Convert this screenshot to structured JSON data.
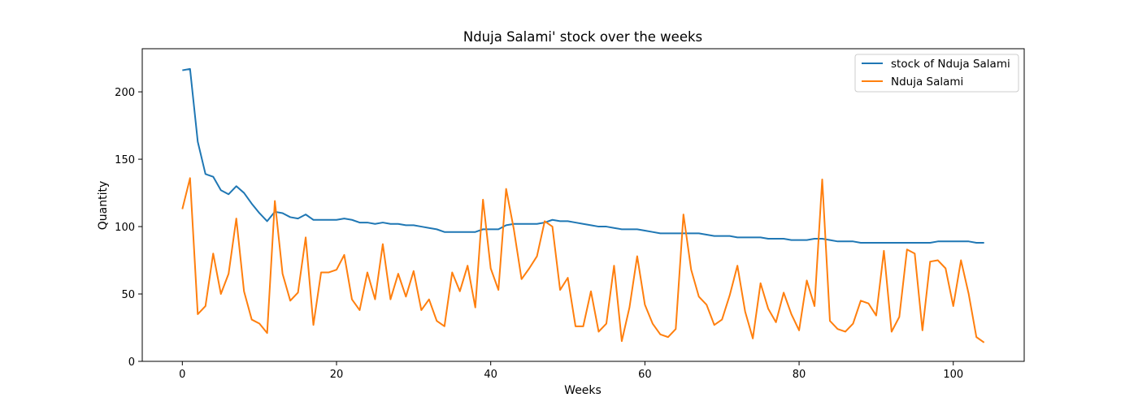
{
  "chart_data": {
    "type": "line",
    "title": "Nduja Salami' stock over the weeks",
    "xlabel": "Weeks",
    "ylabel": "Quantity",
    "xlim": [
      -5.2,
      109.2
    ],
    "ylim": [
      0,
      232
    ],
    "xticks": [
      0,
      20,
      40,
      60,
      80,
      100
    ],
    "yticks": [
      0,
      50,
      100,
      150,
      200
    ],
    "grid": false,
    "legend_position": "upper right",
    "series": [
      {
        "name": "stock of Nduja Salami",
        "color": "#1f77b4",
        "x": [
          0,
          1,
          2,
          3,
          4,
          5,
          6,
          7,
          8,
          9,
          10,
          11,
          12,
          13,
          14,
          15,
          16,
          17,
          18,
          19,
          20,
          21,
          22,
          23,
          24,
          25,
          26,
          27,
          28,
          29,
          30,
          31,
          32,
          33,
          34,
          35,
          36,
          37,
          38,
          39,
          40,
          41,
          42,
          43,
          44,
          45,
          46,
          47,
          48,
          49,
          50,
          51,
          52,
          53,
          54,
          55,
          56,
          57,
          58,
          59,
          60,
          61,
          62,
          63,
          64,
          65,
          66,
          67,
          68,
          69,
          70,
          71,
          72,
          73,
          74,
          75,
          76,
          77,
          78,
          79,
          80,
          81,
          82,
          83,
          84,
          85,
          86,
          87,
          88,
          89,
          90,
          91,
          92,
          93,
          94,
          95,
          96,
          97,
          98,
          99,
          100,
          101,
          102,
          103,
          104
        ],
        "values": [
          216,
          217,
          163,
          139,
          137,
          127,
          124,
          130,
          125,
          117,
          110,
          104,
          111,
          110,
          107,
          106,
          109,
          105,
          105,
          105,
          105,
          106,
          105,
          103,
          103,
          102,
          103,
          102,
          102,
          101,
          101,
          100,
          99,
          98,
          96,
          96,
          96,
          96,
          96,
          98,
          98,
          98,
          101,
          102,
          102,
          102,
          102,
          103,
          105,
          104,
          104,
          103,
          102,
          101,
          100,
          100,
          99,
          98,
          98,
          98,
          97,
          96,
          95,
          95,
          95,
          95,
          95,
          95,
          94,
          93,
          93,
          93,
          92,
          92,
          92,
          92,
          91,
          91,
          91,
          90,
          90,
          90,
          91,
          91,
          90,
          89,
          89,
          89,
          88,
          88,
          88,
          88,
          88,
          88,
          88,
          88,
          88,
          88,
          89,
          89,
          89,
          89,
          89,
          88,
          88
        ]
      },
      {
        "name": "Nduja Salami",
        "color": "#ff7f0e",
        "x": [
          0,
          1,
          2,
          3,
          4,
          5,
          6,
          7,
          8,
          9,
          10,
          11,
          12,
          13,
          14,
          15,
          16,
          17,
          18,
          19,
          20,
          21,
          22,
          23,
          24,
          25,
          26,
          27,
          28,
          29,
          30,
          31,
          32,
          33,
          34,
          35,
          36,
          37,
          38,
          39,
          40,
          41,
          42,
          43,
          44,
          45,
          46,
          47,
          48,
          49,
          50,
          51,
          52,
          53,
          54,
          55,
          56,
          57,
          58,
          59,
          60,
          61,
          62,
          63,
          64,
          65,
          66,
          67,
          68,
          69,
          70,
          71,
          72,
          73,
          74,
          75,
          76,
          77,
          78,
          79,
          80,
          81,
          82,
          83,
          84,
          85,
          86,
          87,
          88,
          89,
          90,
          91,
          92,
          93,
          94,
          95,
          96,
          97,
          98,
          99,
          100,
          101,
          102,
          103,
          104
        ],
        "values": [
          113,
          136,
          35,
          41,
          80,
          50,
          65,
          106,
          52,
          31,
          28,
          21,
          119,
          65,
          45,
          51,
          92,
          27,
          66,
          66,
          68,
          79,
          46,
          38,
          66,
          46,
          87,
          46,
          65,
          48,
          67,
          38,
          46,
          30,
          26,
          66,
          52,
          71,
          40,
          120,
          69,
          53,
          128,
          98,
          61,
          69,
          78,
          104,
          100,
          53,
          62,
          26,
          26,
          52,
          22,
          28,
          71,
          15,
          40,
          78,
          42,
          28,
          20,
          18,
          24,
          109,
          68,
          48,
          42,
          27,
          31,
          49,
          71,
          37,
          17,
          58,
          39,
          29,
          51,
          35,
          23,
          60,
          41,
          135,
          30,
          24,
          22,
          28,
          45,
          43,
          34,
          82,
          22,
          33,
          83,
          80,
          23,
          74,
          75,
          69,
          41,
          75,
          50,
          18,
          14
        ]
      }
    ]
  }
}
